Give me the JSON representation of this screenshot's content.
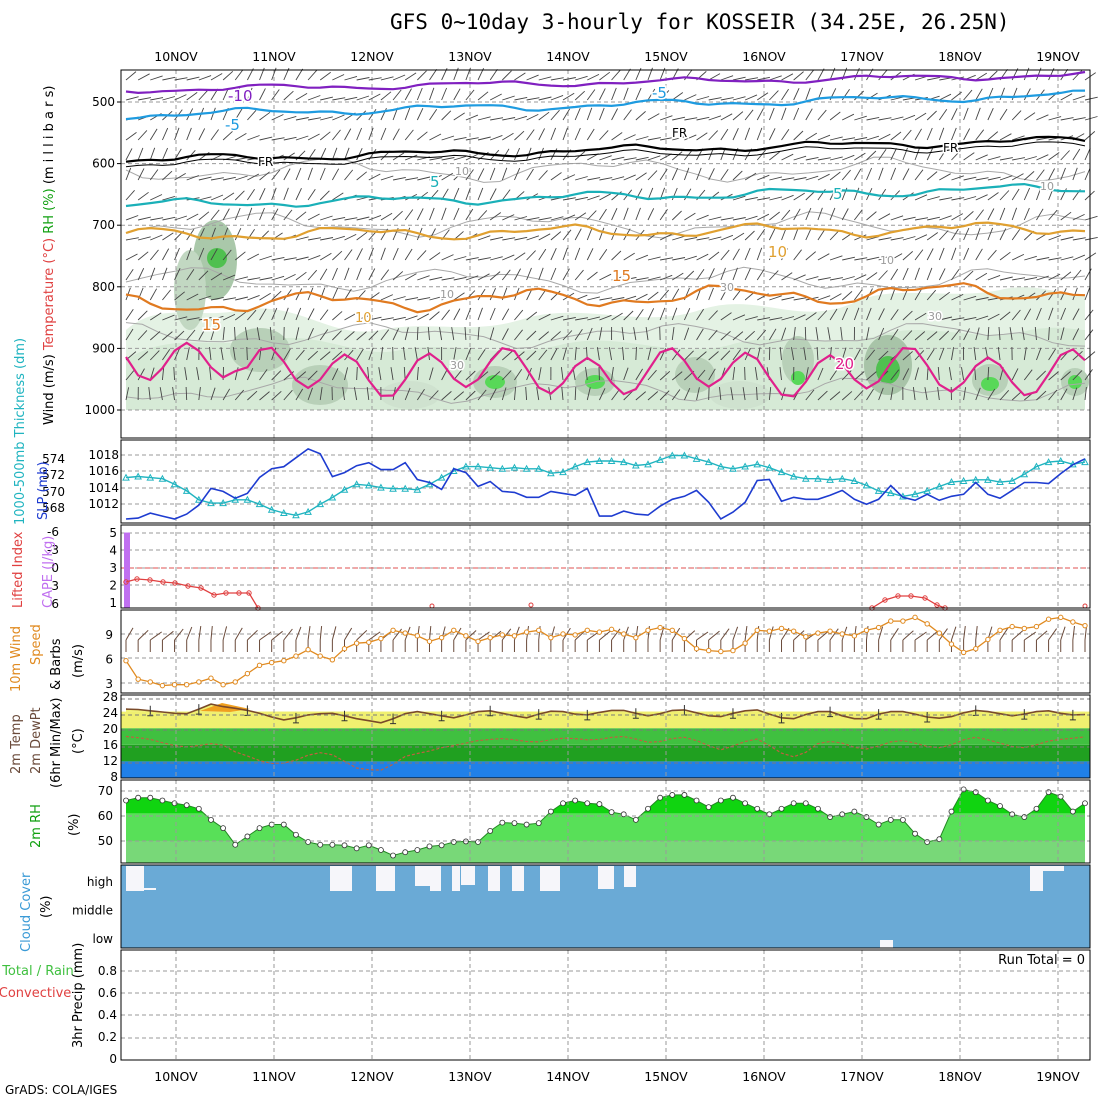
{
  "title": "GFS 0~10day 3-hourly for KOSSEIR (34.25E, 26.25N)",
  "footer": "GrADS: COLA/IGES",
  "dates": [
    "10NOV",
    "11NOV",
    "12NOV",
    "13NOV",
    "14NOV",
    "15NOV",
    "16NOV",
    "17NOV",
    "18NOV",
    "19NOV"
  ],
  "colors": {
    "temp_m10": "#8020c0",
    "temp_m5": "#1e9be0",
    "freezing": "#000000",
    "temp_5": "#1ab0b8",
    "temp_10": "#e0a030",
    "temp_15": "#e07a20",
    "temp_20": "#e0208c",
    "slp": "#1e3cd0",
    "thickness": "#20b4c0",
    "cape": "#c070f0",
    "lifted": "#e04040",
    "wind10m": "#e08a20",
    "barb": "#6a4a3a",
    "rh": "#50e050",
    "rh_dark": "#10d010",
    "cloud": "#6aaad6",
    "cloud_gap": "#f6f6fa",
    "temp_band": "#f0f070"
  },
  "panels": {
    "profile": {
      "ylabel_parts": [
        "Wind (m/s)",
        "Temperature (°C)",
        "RH (%)",
        "(m i l l i b a r s)"
      ],
      "yticks": [
        "500",
        "600",
        "700",
        "800",
        "900",
        "1000"
      ],
      "contour_labels": [
        "-10",
        "-5",
        "-5",
        "FR",
        "FR",
        "FR",
        "5",
        "5",
        "10",
        "10",
        "15",
        "15",
        "20",
        "10",
        "10",
        "10",
        "30",
        "30",
        "30",
        "10"
      ]
    },
    "slp": {
      "ylabel_left": "1000-500mb Thickness (dm)",
      "ylabel_right": "SLP (mb)",
      "left_ticks": [
        "574",
        "572",
        "570",
        "568"
      ],
      "right_ticks": [
        "1018",
        "1016",
        "1014",
        "1012"
      ]
    },
    "lifted": {
      "ylabel_left": "Lifted Index",
      "ylabel_right": "CAPE (J/kg)",
      "left_ticks": [
        "-6",
        "-3",
        "0",
        "3",
        "6"
      ],
      "right_ticks": [
        "5",
        "4",
        "3",
        "2",
        "1"
      ]
    },
    "wind10m": {
      "ylabel_parts": [
        "10m Wind",
        "Speed",
        "& Barbs"
      ],
      "unit": "(m/s)",
      "yticks": [
        "9",
        "6",
        "3"
      ]
    },
    "temp2m": {
      "ylabel_parts": [
        "2m Temp",
        "2m DewPt",
        "(6hr Min/Max)"
      ],
      "unit": "(°C)",
      "yticks": [
        "28",
        "24",
        "20",
        "16",
        "12",
        "8"
      ]
    },
    "rh2m": {
      "ylabel": "2m RH",
      "unit": "(%)",
      "yticks": [
        "70",
        "60",
        "50"
      ]
    },
    "cloud": {
      "ylabel": "Cloud Cover",
      "unit": "(%)",
      "levels": [
        "high",
        "middle",
        "low"
      ]
    },
    "precip": {
      "ylabel_parts": [
        "Total / Rain",
        "Convective"
      ],
      "ylabel_right": "3hr Precip (mm)",
      "yticks": [
        "0.8",
        "0.6",
        "0.4",
        "0.2",
        "0"
      ],
      "run_total": "Run Total = 0"
    }
  },
  "chart_data": [
    {
      "type": "line",
      "title": "Thickness 1000-500mb (dm)",
      "series": [
        {
          "name": "1000-500mb Thickness (dm)",
          "values": [
            571.6,
            571.7,
            571.6,
            571.5,
            571.0,
            570.4,
            569.6,
            569.3,
            569.3,
            569.6,
            569.6,
            569.2,
            568.7,
            568.4,
            568.2,
            568.5,
            569.2,
            569.8,
            570.5,
            571.0,
            570.9,
            570.7,
            570.6,
            570.6,
            570.5,
            571.0,
            571.6,
            572.2,
            572.6,
            572.6,
            572.5,
            572.4,
            572.5,
            572.4,
            572.4,
            572.0,
            572.1,
            572.6,
            573.0,
            573.1,
            573.1,
            573.0,
            572.7,
            572.8,
            573.2,
            573.6,
            573.6,
            573.3,
            573.0,
            572.6,
            572.4,
            572.6,
            572.8,
            572.5,
            572.1,
            571.7,
            571.5,
            571.5,
            571.4,
            571.5,
            571.3,
            570.9,
            570.4,
            570.2,
            569.9,
            570.1,
            570.4,
            570.8,
            571.2,
            571.3,
            571.4,
            571.4,
            571.2,
            571.3,
            571.9,
            572.6,
            573.0,
            573.1,
            572.8,
            573.0
          ]
        }
      ],
      "ylim": [
        567.5,
        575
      ]
    },
    {
      "type": "line",
      "title": "SLP (mb)",
      "series": [
        {
          "name": "SLP (mb)",
          "values": [
            1011.2,
            1011.3,
            1011.8,
            1011.5,
            1011.2,
            1011.7,
            1012.6,
            1014.3,
            1014.0,
            1013.3,
            1013.8,
            1015.4,
            1016.3,
            1016.5,
            1017.4,
            1018.3,
            1017.8,
            1015.5,
            1015.9,
            1016.6,
            1016.9,
            1016.2,
            1016.2,
            1016.9,
            1015.2,
            1014.9,
            1014.2,
            1016.3,
            1015.9,
            1014.5,
            1015.0,
            1014.0,
            1013.9,
            1013.4,
            1013.4,
            1014.0,
            1013.8,
            1013.6,
            1014.3,
            1011.5,
            1011.5,
            1012.0,
            1011.7,
            1011.6,
            1012.5,
            1013.2,
            1013.5,
            1014.1,
            1012.9,
            1011.2,
            1011.9,
            1012.9,
            1015.1,
            1015.2,
            1013.0,
            1013.4,
            1013.2,
            1013.2,
            1013.6,
            1014.1,
            1013.2,
            1012.7,
            1013.2,
            1014.6,
            1013.4,
            1013.1,
            1013.7,
            1013.1,
            1013.5,
            1013.7,
            1014.9,
            1013.7,
            1013.3,
            1014.1,
            1014.9,
            1014.9,
            1014.8,
            1015.8,
            1016.7,
            1017.3
          ]
        }
      ],
      "ylim": [
        1010.8,
        1019.2
      ]
    },
    {
      "type": "line",
      "title": "10m Wind Speed (m/s)",
      "series": [
        {
          "name": "10m Wind Speed",
          "values": [
            5.5,
            3.5,
            3.2,
            2.8,
            2.9,
            2.9,
            3.2,
            3.6,
            2.9,
            3.2,
            4.1,
            5.0,
            5.3,
            5.5,
            6.0,
            6.7,
            6.0,
            5.6,
            6.8,
            7.4,
            7.5,
            7.9,
            8.8,
            8.5,
            8.2,
            7.6,
            8.0,
            8.8,
            8.2,
            7.6,
            8.0,
            8.3,
            8.2,
            8.6,
            8.8,
            8.0,
            8.4,
            8.3,
            8.8,
            8.6,
            8.9,
            8.4,
            8.0,
            8.8,
            9.1,
            8.8,
            7.9,
            6.8,
            6.6,
            6.5,
            6.6,
            7.4,
            8.8,
            8.7,
            9.0,
            8.7,
            8.1,
            8.5,
            8.7,
            8.4,
            8.2,
            8.8,
            9.1,
            9.8,
            9.8,
            10.2,
            9.5,
            8.5,
            7.3,
            6.4,
            6.8,
            7.8,
            8.8,
            9.2,
            9.0,
            9.2,
            10.0,
            10.2,
            9.7,
            9.3
          ]
        }
      ],
      "ylim": [
        2,
        11
      ]
    },
    {
      "type": "line",
      "title": "2m Temp / DewPt (°C)",
      "series": [
        {
          "name": "2m Temp",
          "values": [
            24.6,
            24.5,
            24.2,
            23.9,
            23.6,
            23.5,
            24.6,
            25.8,
            25.2,
            24.8,
            24.3,
            23.6,
            22.7,
            22.0,
            22.5,
            23.2,
            23.5,
            23.6,
            23.0,
            22.3,
            21.8,
            21.3,
            22.3,
            23.5,
            24.0,
            23.5,
            23.0,
            22.5,
            23.2,
            24.0,
            24.2,
            23.6,
            23.0,
            22.5,
            23.4,
            24.1,
            24.0,
            23.4,
            23.2,
            23.8,
            24.3,
            24.3,
            23.6,
            23.0,
            23.5,
            24.3,
            24.4,
            23.7,
            23.0,
            22.8,
            23.6,
            24.2,
            24.4,
            23.4,
            22.5,
            22.3,
            23.3,
            24.0,
            24.0,
            23.0,
            22.3,
            22.3,
            23.4,
            24.0,
            24.0,
            23.4,
            22.7,
            22.4,
            22.8,
            23.7,
            24.3,
            24.0,
            23.5,
            23.0,
            23.4,
            24.0,
            24.2,
            23.6,
            23.2,
            23.3
          ]
        },
        {
          "name": "2m DewPt",
          "values": [
            18.0,
            17.7,
            17.3,
            16.5,
            15.8,
            15.5,
            15.8,
            16.3,
            15.9,
            14.3,
            13.3,
            12.2,
            11.5,
            11.6,
            12.3,
            13.5,
            14.1,
            13.6,
            12.0,
            10.4,
            10.0,
            9.9,
            11.3,
            13.2,
            13.9,
            14.5,
            15.3,
            15.8,
            16.4,
            17.0,
            17.3,
            17.5,
            17.2,
            16.8,
            16.7,
            17.2,
            17.6,
            17.5,
            17.2,
            17.3,
            17.8,
            18.0,
            17.4,
            16.6,
            16.8,
            17.5,
            17.8,
            17.0,
            15.8,
            14.8,
            15.7,
            16.8,
            17.4,
            15.8,
            14.0,
            13.1,
            14.2,
            16.3,
            16.8,
            16.4,
            15.4,
            15.0,
            15.7,
            16.7,
            17.0,
            16.4,
            15.6,
            15.3,
            16.0,
            17.2,
            17.8,
            17.2,
            16.4,
            15.6,
            15.3,
            16.0,
            16.9,
            17.3,
            17.6,
            17.9
          ]
        }
      ],
      "ylim": [
        8,
        28
      ]
    },
    {
      "type": "area",
      "title": "2m RH (%)",
      "series": [
        {
          "name": "2m RH",
          "values": [
            64.6,
            65.6,
            65.6,
            64.6,
            63.6,
            62.9,
            61.6,
            57.6,
            54.6,
            48.6,
            51.6,
            54.6,
            55.9,
            55.9,
            52.2,
            49.6,
            48.6,
            48.6,
            48.4,
            47.3,
            48.4,
            46.7,
            44.7,
            45.9,
            46.7,
            48.0,
            48.4,
            49.6,
            49.8,
            49.6,
            53.6,
            56.6,
            56.4,
            55.9,
            56.4,
            60.6,
            63.6,
            64.6,
            63.6,
            63.3,
            60.4,
            59.6,
            57.6,
            61.6,
            65.6,
            66.6,
            66.6,
            64.6,
            62.2,
            64.6,
            65.6,
            63.6,
            61.6,
            59.6,
            61.6,
            63.6,
            63.6,
            61.6,
            58.6,
            59.6,
            60.6,
            58.6,
            55.9,
            57.6,
            57.6,
            52.6,
            49.6,
            50.6,
            60.6,
            68.6,
            67.6,
            64.6,
            62.6,
            59.6,
            58.6,
            61.6,
            67.6,
            66.0,
            60.6,
            63.6
          ]
        }
      ],
      "ylim": [
        42,
        72
      ]
    },
    {
      "type": "bar",
      "title": "CAPE (J/kg)",
      "series": [
        {
          "name": "CAPE",
          "values": [
            5.0
          ]
        }
      ],
      "ylim": [
        0,
        5.5
      ]
    }
  ]
}
